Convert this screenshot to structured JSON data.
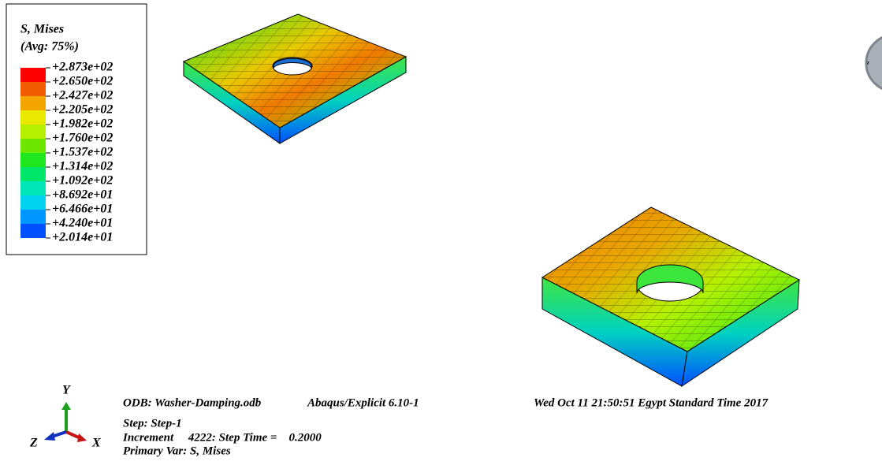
{
  "legend": {
    "title": "S, Mises",
    "subtitle": "(Avg: 75%)",
    "labels": [
      "+2.873e+02",
      "+2.650e+02",
      "+2.427e+02",
      "+2.205e+02",
      "+1.982e+02",
      "+1.760e+02",
      "+1.537e+02",
      "+1.314e+02",
      "+1.092e+02",
      "+8.692e+01",
      "+6.466e+01",
      "+4.240e+01",
      "+2.014e+01"
    ],
    "colors": [
      "#ff0000",
      "#f25c00",
      "#f5a500",
      "#e8e800",
      "#b6f000",
      "#6ee600",
      "#20e620",
      "#00e66a",
      "#00e6b8",
      "#00d2f0",
      "#0096ff",
      "#0050ff",
      "#0000ff"
    ]
  },
  "triad": {
    "y": "Y",
    "x": "X",
    "z": "Z"
  },
  "logo": {
    "axis": "z"
  },
  "info": {
    "odb": "ODB: Washer-Damping.odb",
    "solver": "Abaqus/Explicit 6.10-1",
    "date": "Wed Oct 11 21:50:51 Egypt Standard Time 2017",
    "step": "Step: Step-1",
    "increment": "Increment     4222: Step Time =    0.2000",
    "primary_var": "Primary Var: S, Mises"
  }
}
